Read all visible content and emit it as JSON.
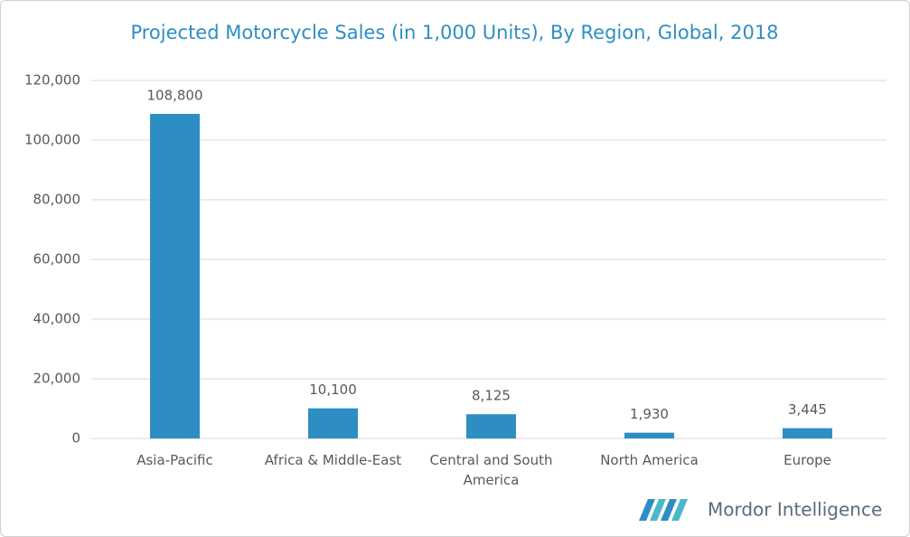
{
  "chart_data": {
    "type": "bar",
    "title": "Projected Motorcycle Sales (in 1,000 Units), By Region, Global, 2018",
    "categories": [
      "Asia-Pacific",
      "Africa & Middle-East",
      "Central and South America",
      "North America",
      "Europe"
    ],
    "values": [
      108800,
      10100,
      8125,
      1930,
      3445
    ],
    "value_labels": [
      "108,800",
      "10,100",
      "8,125",
      "1,930",
      "3,445"
    ],
    "color": "#2e8ec4",
    "ylim": [
      0,
      120000
    ],
    "yticks": [
      0,
      {
        "value": 20000,
        "label": "20,000"
      },
      {
        "value": 40000,
        "label": "40,000"
      },
      {
        "value": 60000,
        "label": "60,000"
      },
      {
        "value": 80000,
        "label": "80,000"
      },
      {
        "value": 100000,
        "label": "100,000"
      },
      {
        "value": 120000,
        "label": "120,000"
      }
    ],
    "grid": true,
    "logo": "Mordor Intelligence"
  }
}
